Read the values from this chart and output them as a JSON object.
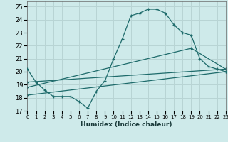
{
  "xlabel": "Humidex (Indice chaleur)",
  "background_color": "#ceeaea",
  "grid_color": "#b8d4d4",
  "line_color": "#1e6b6b",
  "ylim": [
    17,
    25.4
  ],
  "xlim": [
    0,
    23
  ],
  "yticks": [
    17,
    18,
    19,
    20,
    21,
    22,
    23,
    24,
    25
  ],
  "xticks": [
    0,
    1,
    2,
    3,
    4,
    5,
    6,
    7,
    8,
    9,
    10,
    11,
    12,
    13,
    14,
    15,
    16,
    17,
    18,
    19,
    20,
    21,
    22,
    23
  ],
  "series1_x": [
    0,
    1,
    2,
    3,
    4,
    5,
    6,
    7,
    8,
    9,
    10,
    11,
    12,
    13,
    14,
    15,
    16,
    17,
    18,
    19,
    20,
    21,
    22,
    23
  ],
  "series1_y": [
    20.2,
    19.2,
    18.6,
    18.1,
    18.1,
    18.1,
    17.7,
    17.2,
    18.5,
    19.3,
    21.0,
    22.5,
    24.3,
    24.5,
    24.8,
    24.8,
    24.5,
    23.6,
    23.0,
    22.8,
    21.0,
    20.4,
    20.2,
    20.0
  ],
  "series2_x": [
    0,
    23
  ],
  "series2_y": [
    19.2,
    20.2
  ],
  "series3_x": [
    0,
    19,
    23
  ],
  "series3_y": [
    18.8,
    21.8,
    20.2
  ],
  "series4_x": [
    0,
    23
  ],
  "series4_y": [
    18.2,
    20.0
  ]
}
